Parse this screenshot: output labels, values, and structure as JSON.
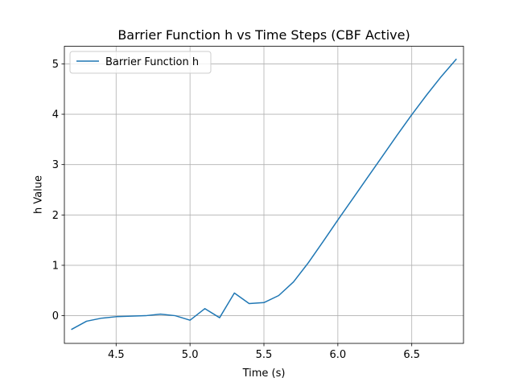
{
  "chart_data": {
    "type": "line",
    "title": "Barrier Function h vs Time Steps (CBF Active)",
    "xlabel": "Time (s)",
    "ylabel": "h Value",
    "xlim": [
      4.15,
      6.85
    ],
    "ylim": [
      -0.55,
      5.35
    ],
    "xticks": [
      4.5,
      5.0,
      5.5,
      6.0,
      6.5
    ],
    "xtick_labels": [
      "4.5",
      "5.0",
      "5.5",
      "6.0",
      "6.5"
    ],
    "yticks": [
      0,
      1,
      2,
      3,
      4,
      5
    ],
    "ytick_labels": [
      "0",
      "1",
      "2",
      "3",
      "4",
      "5"
    ],
    "grid": true,
    "legend_position": "top-left",
    "series": [
      {
        "name": "Barrier Function h",
        "color": "#1f77b4",
        "x": [
          4.2,
          4.3,
          4.4,
          4.5,
          4.6,
          4.7,
          4.8,
          4.9,
          5.0,
          5.1,
          5.2,
          5.3,
          5.4,
          5.5,
          5.6,
          5.7,
          5.8,
          5.9,
          6.0,
          6.1,
          6.2,
          6.3,
          6.4,
          6.5,
          6.6,
          6.7,
          6.8
        ],
        "y": [
          -0.27,
          -0.11,
          -0.05,
          -0.02,
          -0.01,
          0.0,
          0.03,
          0.0,
          -0.09,
          0.14,
          -0.04,
          0.45,
          0.24,
          0.26,
          0.4,
          0.67,
          1.05,
          1.47,
          1.9,
          2.32,
          2.74,
          3.16,
          3.58,
          3.99,
          4.38,
          4.75,
          5.09
        ]
      }
    ]
  }
}
